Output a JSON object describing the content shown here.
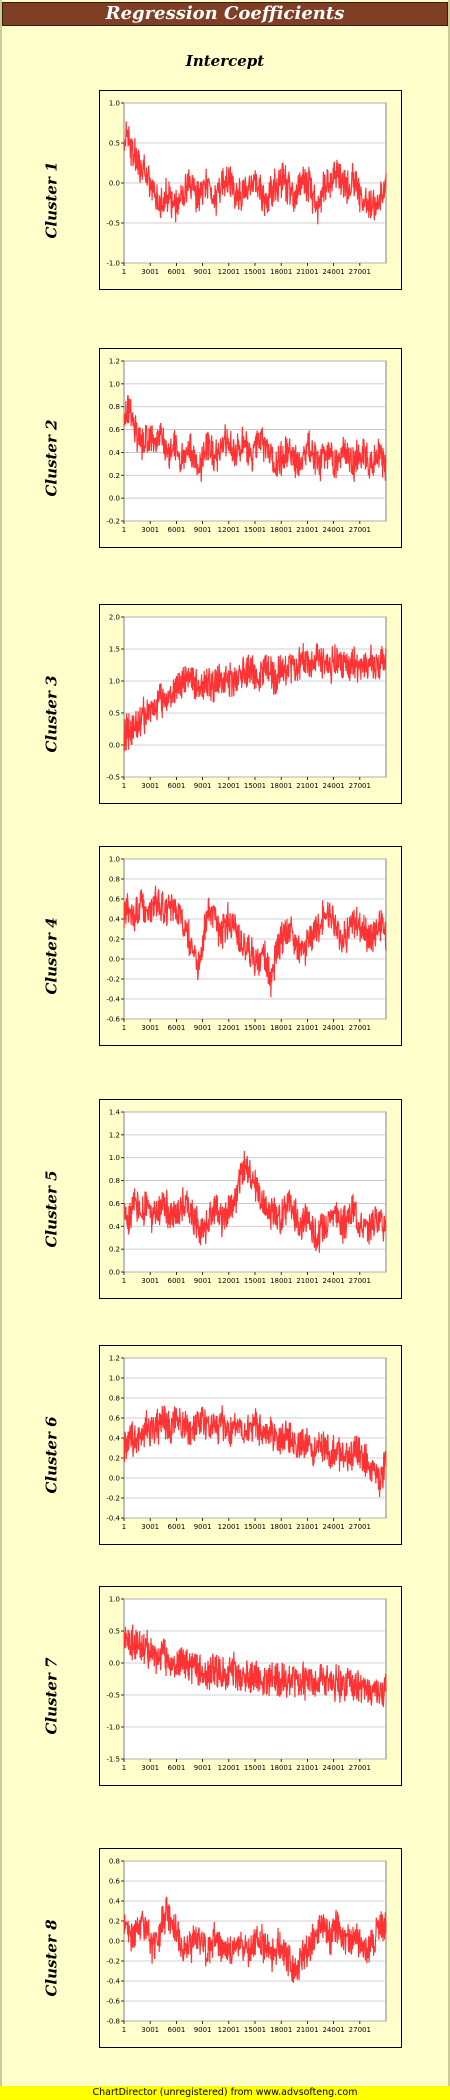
{
  "header": {
    "title": "Regression Coefficients",
    "subtitle": "Intercept"
  },
  "footer": {
    "text": "ChartDirector (unregistered) from www.advsofteng.com"
  },
  "colors": {
    "background": "#ffffcc",
    "title_bar": "#7f3f25",
    "series": "#ff3333",
    "grid": "#c0c0c0",
    "footer": "#ffff00"
  },
  "chart_data": [
    {
      "type": "line",
      "title": "Cluster 1",
      "x_tick_labels": [
        "1",
        "3001",
        "6001",
        "9001",
        "12001",
        "15001",
        "18001",
        "21001",
        "24001",
        "27001"
      ],
      "x_range": [
        1,
        30000
      ],
      "y_ticks": [
        "1.0",
        "0.5",
        "0.0",
        "-0.5",
        "-1.0"
      ],
      "ylim": [
        -1.0,
        1.0
      ],
      "series": [
        {
          "values": [
            0.55,
            0.68,
            0.45,
            0.35,
            0.28,
            0.2,
            0.12,
            0.05,
            -0.05,
            -0.1,
            -0.2,
            -0.25,
            -0.18,
            -0.15,
            -0.2,
            -0.28,
            -0.3,
            -0.25,
            -0.15,
            -0.1,
            -0.05,
            -0.1,
            -0.15,
            -0.2,
            -0.15,
            -0.05,
            0.0,
            -0.1,
            -0.18,
            -0.12,
            -0.05,
            0.0,
            0.05,
            -0.05,
            -0.1,
            -0.15,
            -0.2,
            -0.1,
            -0.05,
            0.05,
            0.0,
            -0.05,
            -0.15,
            -0.25,
            -0.2,
            -0.1,
            -0.05,
            0.0,
            0.05,
            0.0,
            -0.05,
            -0.12,
            -0.2,
            -0.1,
            0.0,
            0.05,
            0.0,
            -0.1,
            -0.2,
            -0.3,
            -0.2,
            -0.1,
            0.0,
            0.05,
            0.1,
            0.15,
            0.05,
            0.0,
            -0.05,
            0.0,
            0.05,
            -0.05,
            -0.15,
            -0.2,
            -0.25,
            -0.2,
            -0.3,
            -0.35,
            -0.25,
            -0.1,
            0.05
          ]
        }
      ],
      "grid": true
    },
    {
      "type": "line",
      "title": "Cluster 2",
      "x_tick_labels": [
        "1",
        "3001",
        "6001",
        "9001",
        "12001",
        "15001",
        "18001",
        "21001",
        "24001",
        "27001"
      ],
      "x_range": [
        1,
        30000
      ],
      "y_ticks": [
        "1.2",
        "1.0",
        "0.8",
        "0.6",
        "0.4",
        "0.2",
        "0.0",
        "-0.2"
      ],
      "ylim": [
        -0.2,
        1.2
      ],
      "series": [
        {
          "values": [
            0.7,
            0.8,
            0.75,
            0.62,
            0.55,
            0.5,
            0.48,
            0.55,
            0.52,
            0.45,
            0.5,
            0.55,
            0.5,
            0.42,
            0.4,
            0.45,
            0.5,
            0.38,
            0.35,
            0.42,
            0.48,
            0.4,
            0.3,
            0.25,
            0.35,
            0.45,
            0.5,
            0.42,
            0.35,
            0.4,
            0.45,
            0.5,
            0.52,
            0.45,
            0.38,
            0.42,
            0.48,
            0.45,
            0.4,
            0.35,
            0.42,
            0.48,
            0.5,
            0.45,
            0.4,
            0.35,
            0.3,
            0.28,
            0.35,
            0.4,
            0.42,
            0.38,
            0.35,
            0.3,
            0.33,
            0.4,
            0.45,
            0.42,
            0.38,
            0.35,
            0.3,
            0.35,
            0.4,
            0.38,
            0.35,
            0.32,
            0.38,
            0.42,
            0.4,
            0.35,
            0.3,
            0.35,
            0.4,
            0.38,
            0.35,
            0.3,
            0.32,
            0.38,
            0.4,
            0.35,
            0.3
          ]
        }
      ],
      "grid": true
    },
    {
      "type": "line",
      "title": "Cluster 3",
      "x_tick_labels": [
        "1",
        "3001",
        "6001",
        "9001",
        "12001",
        "15001",
        "18001",
        "21001",
        "24001",
        "27001"
      ],
      "x_range": [
        1,
        30000
      ],
      "y_ticks": [
        "2.0",
        "1.5",
        "1.0",
        "0.5",
        "0.0",
        "-0.5"
      ],
      "ylim": [
        -0.5,
        2.0
      ],
      "series": [
        {
          "values": [
            0.1,
            0.2,
            0.25,
            0.3,
            0.35,
            0.4,
            0.45,
            0.5,
            0.55,
            0.6,
            0.62,
            0.68,
            0.7,
            0.75,
            0.8,
            0.85,
            0.9,
            0.92,
            0.95,
            1.0,
            1.0,
            0.98,
            0.95,
            1.0,
            1.02,
            0.98,
            0.95,
            0.92,
            0.95,
            1.0,
            1.05,
            1.02,
            0.98,
            1.0,
            1.05,
            1.1,
            1.15,
            1.18,
            1.2,
            1.15,
            1.1,
            1.12,
            1.15,
            1.2,
            1.15,
            1.1,
            1.05,
            1.1,
            1.15,
            1.2,
            1.22,
            1.25,
            1.22,
            1.2,
            1.25,
            1.3,
            1.28,
            1.25,
            1.3,
            1.32,
            1.28,
            1.25,
            1.22,
            1.25,
            1.28,
            1.3,
            1.25,
            1.2,
            1.22,
            1.25,
            1.28,
            1.25,
            1.22,
            1.25,
            1.28,
            1.3,
            1.25,
            1.22,
            1.25,
            1.28,
            1.3
          ]
        }
      ],
      "grid": true
    },
    {
      "type": "line",
      "title": "Cluster 4",
      "x_tick_labels": [
        "1",
        "3001",
        "6001",
        "9001",
        "12001",
        "15001",
        "18001",
        "21001",
        "24001",
        "27001"
      ],
      "x_range": [
        1,
        30000
      ],
      "y_ticks": [
        "1.0",
        "0.8",
        "0.6",
        "0.4",
        "0.2",
        "0.0",
        "-0.2",
        "-0.4",
        "-0.6"
      ],
      "ylim": [
        -0.6,
        1.0
      ],
      "series": [
        {
          "values": [
            0.45,
            0.5,
            0.45,
            0.42,
            0.48,
            0.55,
            0.5,
            0.48,
            0.45,
            0.55,
            0.6,
            0.55,
            0.5,
            0.45,
            0.48,
            0.52,
            0.5,
            0.4,
            0.35,
            0.3,
            0.2,
            0.1,
            0.0,
            -0.1,
            0.2,
            0.45,
            0.5,
            0.42,
            0.35,
            0.3,
            0.25,
            0.35,
            0.4,
            0.32,
            0.28,
            0.25,
            0.2,
            0.15,
            0.1,
            0.05,
            0.0,
            -0.05,
            0.1,
            0.05,
            -0.1,
            -0.2,
            -0.05,
            0.1,
            0.2,
            0.25,
            0.3,
            0.28,
            0.2,
            0.1,
            0.05,
            0.1,
            0.15,
            0.2,
            0.25,
            0.3,
            0.35,
            0.45,
            0.5,
            0.45,
            0.35,
            0.3,
            0.25,
            0.2,
            0.25,
            0.3,
            0.35,
            0.4,
            0.35,
            0.3,
            0.25,
            0.2,
            0.25,
            0.3,
            0.35,
            0.3,
            0.25
          ]
        }
      ],
      "grid": true
    },
    {
      "type": "line",
      "title": "Cluster 5",
      "x_tick_labels": [
        "1",
        "3001",
        "6001",
        "9001",
        "12001",
        "15001",
        "18001",
        "21001",
        "24001",
        "27001"
      ],
      "x_range": [
        1,
        30000
      ],
      "y_ticks": [
        "1.4",
        "1.2",
        "1.0",
        "0.8",
        "0.6",
        "0.4",
        "0.2",
        "0.0"
      ],
      "ylim": [
        0.0,
        1.4
      ],
      "series": [
        {
          "values": [
            0.5,
            0.45,
            0.5,
            0.6,
            0.55,
            0.5,
            0.55,
            0.6,
            0.5,
            0.45,
            0.5,
            0.55,
            0.6,
            0.55,
            0.5,
            0.45,
            0.5,
            0.55,
            0.6,
            0.65,
            0.55,
            0.5,
            0.45,
            0.4,
            0.35,
            0.4,
            0.45,
            0.5,
            0.55,
            0.5,
            0.45,
            0.5,
            0.55,
            0.6,
            0.65,
            0.75,
            0.85,
            0.9,
            0.85,
            0.8,
            0.75,
            0.7,
            0.65,
            0.6,
            0.55,
            0.5,
            0.5,
            0.45,
            0.5,
            0.55,
            0.6,
            0.55,
            0.5,
            0.45,
            0.4,
            0.45,
            0.5,
            0.4,
            0.35,
            0.3,
            0.35,
            0.4,
            0.45,
            0.5,
            0.55,
            0.5,
            0.45,
            0.4,
            0.45,
            0.5,
            0.55,
            0.5,
            0.45,
            0.4,
            0.35,
            0.4,
            0.45,
            0.5,
            0.45,
            0.4,
            0.45
          ]
        }
      ],
      "grid": true
    },
    {
      "type": "line",
      "title": "Cluster 6",
      "x_tick_labels": [
        "1",
        "3001",
        "6001",
        "9001",
        "12001",
        "15001",
        "18001",
        "21001",
        "24001",
        "27001"
      ],
      "x_range": [
        1,
        30000
      ],
      "y_ticks": [
        "1.2",
        "1.0",
        "0.8",
        "0.6",
        "0.4",
        "0.2",
        "0.0",
        "-0.2",
        "-0.4"
      ],
      "ylim": [
        -0.4,
        1.2
      ],
      "series": [
        {
          "values": [
            0.3,
            0.35,
            0.4,
            0.38,
            0.35,
            0.4,
            0.45,
            0.5,
            0.48,
            0.45,
            0.5,
            0.55,
            0.6,
            0.55,
            0.5,
            0.55,
            0.6,
            0.58,
            0.55,
            0.5,
            0.48,
            0.5,
            0.55,
            0.6,
            0.58,
            0.55,
            0.5,
            0.48,
            0.5,
            0.52,
            0.55,
            0.5,
            0.48,
            0.45,
            0.5,
            0.55,
            0.5,
            0.48,
            0.45,
            0.5,
            0.52,
            0.5,
            0.45,
            0.42,
            0.45,
            0.48,
            0.45,
            0.4,
            0.38,
            0.4,
            0.42,
            0.4,
            0.35,
            0.32,
            0.35,
            0.38,
            0.35,
            0.3,
            0.28,
            0.3,
            0.32,
            0.3,
            0.25,
            0.22,
            0.25,
            0.28,
            0.25,
            0.22,
            0.2,
            0.22,
            0.25,
            0.28,
            0.25,
            0.2,
            0.15,
            0.1,
            0.05,
            0.0,
            -0.05,
            0.05,
            0.2
          ]
        }
      ],
      "grid": true
    },
    {
      "type": "line",
      "title": "Cluster 7",
      "x_tick_labels": [
        "1",
        "3001",
        "6001",
        "9001",
        "12001",
        "15001",
        "18001",
        "21001",
        "24001",
        "27001"
      ],
      "x_range": [
        1,
        30000
      ],
      "y_ticks": [
        "1.0",
        "0.5",
        "0.0",
        "-0.5",
        "-1.0",
        "-1.5"
      ],
      "ylim": [
        -1.5,
        1.0
      ],
      "series": [
        {
          "values": [
            0.4,
            0.45,
            0.35,
            0.3,
            0.32,
            0.28,
            0.25,
            0.2,
            0.18,
            0.15,
            0.1,
            0.12,
            0.1,
            0.05,
            0.02,
            0.0,
            -0.02,
            0.05,
            0.0,
            -0.05,
            -0.08,
            -0.05,
            -0.1,
            -0.12,
            -0.08,
            -0.1,
            -0.15,
            -0.12,
            -0.1,
            -0.15,
            -0.18,
            -0.2,
            -0.15,
            -0.12,
            -0.15,
            -0.2,
            -0.22,
            -0.2,
            -0.18,
            -0.2,
            -0.25,
            -0.22,
            -0.2,
            -0.25,
            -0.28,
            -0.25,
            -0.22,
            -0.25,
            -0.28,
            -0.3,
            -0.25,
            -0.22,
            -0.25,
            -0.3,
            -0.32,
            -0.28,
            -0.25,
            -0.3,
            -0.32,
            -0.35,
            -0.3,
            -0.28,
            -0.3,
            -0.35,
            -0.32,
            -0.3,
            -0.35,
            -0.38,
            -0.35,
            -0.32,
            -0.35,
            -0.4,
            -0.38,
            -0.35,
            -0.4,
            -0.45,
            -0.4,
            -0.42,
            -0.45,
            -0.48,
            -0.45
          ]
        }
      ],
      "grid": true
    },
    {
      "type": "line",
      "title": "Cluster 8",
      "x_tick_labels": [
        "1",
        "3001",
        "6001",
        "9001",
        "12001",
        "15001",
        "18001",
        "21001",
        "24001",
        "27001"
      ],
      "x_range": [
        1,
        30000
      ],
      "y_ticks": [
        "0.8",
        "0.6",
        "0.4",
        "0.2",
        "0.0",
        "-0.2",
        "-0.4",
        "-0.6",
        "-0.8"
      ],
      "ylim": [
        -0.8,
        0.8
      ],
      "series": [
        {
          "values": [
            0.15,
            0.2,
            0.1,
            0.05,
            0.1,
            0.15,
            0.2,
            0.1,
            0.0,
            -0.05,
            0.0,
            0.1,
            0.2,
            0.3,
            0.25,
            0.15,
            0.1,
            0.0,
            -0.05,
            -0.1,
            -0.05,
            0.0,
            0.05,
            0.0,
            -0.05,
            -0.1,
            -0.05,
            0.0,
            0.05,
            0.0,
            -0.05,
            -0.1,
            -0.15,
            -0.1,
            -0.05,
            0.0,
            -0.05,
            -0.1,
            -0.08,
            -0.05,
            0.0,
            0.05,
            0.0,
            -0.05,
            -0.1,
            -0.15,
            -0.1,
            -0.05,
            -0.1,
            -0.15,
            -0.2,
            -0.25,
            -0.3,
            -0.25,
            -0.2,
            -0.15,
            -0.1,
            -0.05,
            0.0,
            0.05,
            0.1,
            0.15,
            0.1,
            0.05,
            0.1,
            0.15,
            0.1,
            0.05,
            0.0,
            -0.05,
            0.0,
            0.05,
            0.0,
            -0.05,
            -0.1,
            -0.05,
            0.0,
            0.05,
            0.1,
            0.15,
            0.2
          ]
        }
      ],
      "grid": true
    }
  ]
}
